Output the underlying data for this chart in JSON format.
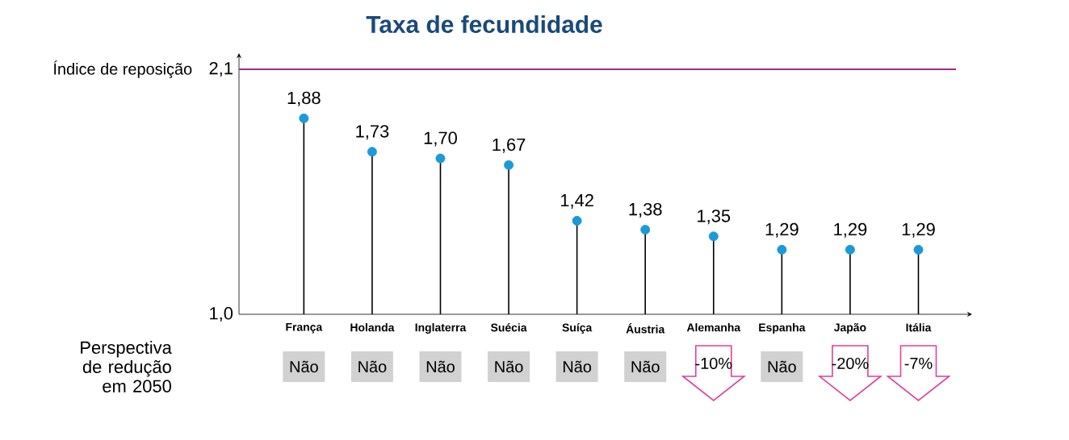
{
  "chart_data": {
    "type": "lollipop",
    "title": "Taxa de fecundidade",
    "categories": [
      "França",
      "Holanda",
      "Inglaterra",
      "Suécia",
      "Suíça",
      "Áustria",
      "Alemanha",
      "Espanha",
      "Japão",
      "Itália"
    ],
    "values": [
      1.88,
      1.73,
      1.7,
      1.67,
      1.42,
      1.38,
      1.35,
      1.29,
      1.29,
      1.29
    ],
    "value_labels": [
      "1,88",
      "1,73",
      "1,70",
      "1,67",
      "1,42",
      "1,38",
      "1,35",
      "1,29",
      "1,29",
      "1,29"
    ],
    "color": "#1a9ad6",
    "ylim": [
      1.0,
      2.1
    ],
    "yticks": [
      {
        "value": 1.0,
        "label": "1,0"
      },
      {
        "value": 2.1,
        "label": "2,1"
      }
    ],
    "ref_lines": [
      {
        "axis": "y",
        "value": 2.1,
        "label": "Índice de reposição",
        "color": "#9b2a8e"
      }
    ],
    "annotations": [
      "Perspectiva de redução em 2050",
      "Não",
      "Não",
      "Não",
      "Não",
      "Não",
      "Não",
      "-10%",
      "Não",
      "-20%",
      "-7%"
    ]
  }
}
